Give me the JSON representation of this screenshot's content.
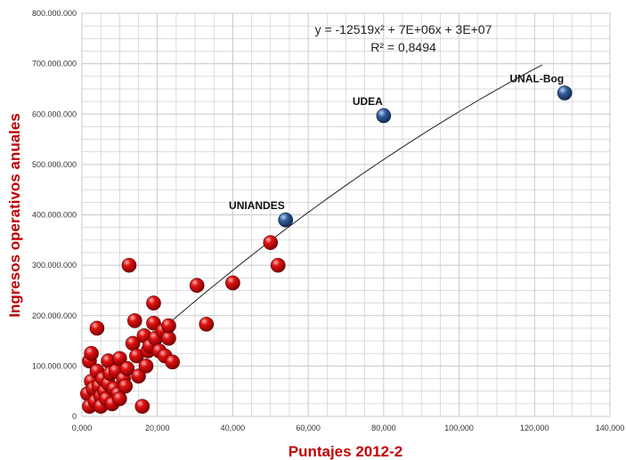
{
  "chart_data": {
    "type": "scatter",
    "title": "",
    "xlabel": "Puntajes 2012-2",
    "ylabel": "Ingresos operativos anuales",
    "xlim": [
      0,
      140000
    ],
    "ylim": [
      0,
      800000000
    ],
    "x_ticks": [
      "0,000",
      "20,000",
      "40,000",
      "60,000",
      "80,000",
      "100,000",
      "120,000",
      "140,000"
    ],
    "y_ticks": [
      "0",
      "100.000.000",
      "200.000.000",
      "300.000.000",
      "400.000.000",
      "500.000.000",
      "600.000.000",
      "700.000.000",
      "800.000.000"
    ],
    "grid": true,
    "trendline": {
      "equation": "y = -12519x² + 7E+06x + 3E+07",
      "r_squared": "R² = 0,8494",
      "x_range": [
        20000,
        122000
      ]
    },
    "colors": {
      "default_point": "#cc0000",
      "highlight_point": "#2e5b9a",
      "axis_title": "#c00000",
      "grid": "#c8c8c8"
    },
    "series": [
      {
        "points": [
          {
            "x": 1500,
            "y": 45000000
          },
          {
            "x": 2000,
            "y": 110000000
          },
          {
            "x": 2500,
            "y": 125000000
          },
          {
            "x": 2500,
            "y": 70000000
          },
          {
            "x": 2000,
            "y": 20000000
          },
          {
            "x": 3000,
            "y": 55000000
          },
          {
            "x": 3500,
            "y": 30000000
          },
          {
            "x": 4000,
            "y": 175000000
          },
          {
            "x": 4000,
            "y": 90000000
          },
          {
            "x": 4500,
            "y": 60000000
          },
          {
            "x": 5000,
            "y": 40000000
          },
          {
            "x": 5000,
            "y": 20000000
          },
          {
            "x": 5500,
            "y": 75000000
          },
          {
            "x": 6000,
            "y": 50000000
          },
          {
            "x": 6500,
            "y": 35000000
          },
          {
            "x": 7000,
            "y": 110000000
          },
          {
            "x": 7000,
            "y": 65000000
          },
          {
            "x": 7500,
            "y": 85000000
          },
          {
            "x": 8000,
            "y": 25000000
          },
          {
            "x": 8500,
            "y": 55000000
          },
          {
            "x": 9000,
            "y": 90000000
          },
          {
            "x": 9500,
            "y": 45000000
          },
          {
            "x": 10000,
            "y": 115000000
          },
          {
            "x": 10000,
            "y": 35000000
          },
          {
            "x": 11000,
            "y": 75000000
          },
          {
            "x": 11500,
            "y": 60000000
          },
          {
            "x": 12000,
            "y": 95000000
          },
          {
            "x": 12500,
            "y": 300000000
          },
          {
            "x": 13500,
            "y": 145000000
          },
          {
            "x": 14000,
            "y": 190000000
          },
          {
            "x": 14500,
            "y": 120000000
          },
          {
            "x": 15000,
            "y": 80000000
          },
          {
            "x": 16000,
            "y": 20000000
          },
          {
            "x": 16500,
            "y": 160000000
          },
          {
            "x": 17000,
            "y": 100000000
          },
          {
            "x": 17500,
            "y": 130000000
          },
          {
            "x": 18000,
            "y": 140000000
          },
          {
            "x": 19000,
            "y": 225000000
          },
          {
            "x": 19000,
            "y": 185000000
          },
          {
            "x": 19500,
            "y": 155000000
          },
          {
            "x": 20500,
            "y": 130000000
          },
          {
            "x": 21500,
            "y": 170000000
          },
          {
            "x": 22000,
            "y": 120000000
          },
          {
            "x": 23000,
            "y": 155000000
          },
          {
            "x": 23000,
            "y": 180000000
          },
          {
            "x": 24000,
            "y": 108000000
          },
          {
            "x": 30500,
            "y": 260000000
          },
          {
            "x": 33000,
            "y": 183000000
          },
          {
            "x": 40000,
            "y": 265000000
          },
          {
            "x": 50000,
            "y": 345000000
          },
          {
            "x": 52000,
            "y": 300000000
          }
        ]
      },
      {
        "points": [
          {
            "x": 54000,
            "y": 390000000,
            "label": "UNIANDES"
          },
          {
            "x": 80000,
            "y": 597000000,
            "label": "UDEA"
          },
          {
            "x": 128000,
            "y": 642000000,
            "label": "UNAL-Bog"
          }
        ]
      }
    ]
  }
}
